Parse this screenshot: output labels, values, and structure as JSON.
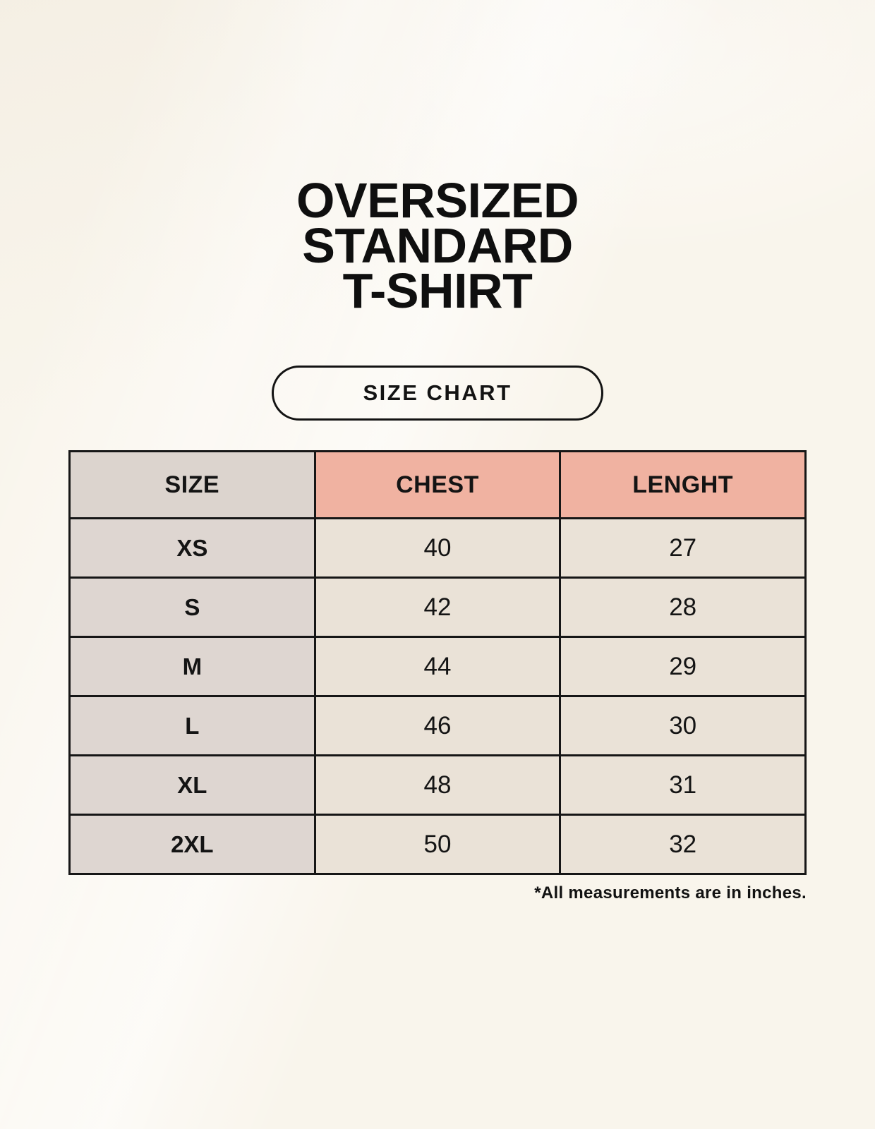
{
  "title": {
    "lines": [
      "OVERSIZED",
      "STANDARD",
      "T-SHIRT"
    ]
  },
  "size_chart_button": {
    "label": "SIZE CHART"
  },
  "table": {
    "headers": {
      "size": "SIZE",
      "chest": "CHEST",
      "length": "LENGHT"
    },
    "rows": [
      {
        "size": "XS",
        "chest": "40",
        "length": "27"
      },
      {
        "size": "S",
        "chest": "42",
        "length": "28"
      },
      {
        "size": "M",
        "chest": "44",
        "length": "29"
      },
      {
        "size": "L",
        "chest": "46",
        "length": "30"
      },
      {
        "size": "XL",
        "chest": "48",
        "length": "31"
      },
      {
        "size": "2XL",
        "chest": "50",
        "length": "32"
      }
    ]
  },
  "footnote": "*All measurements are in inches.",
  "colors": {
    "page_bg": "#f9f5ec",
    "header_size_bg": "#dcd4ce",
    "header_measure_bg": "#f0b2a1",
    "size_col_bg": "#ded6d1",
    "cell_bg": "#eae2d7",
    "border": "#161616",
    "text": "#141414"
  }
}
